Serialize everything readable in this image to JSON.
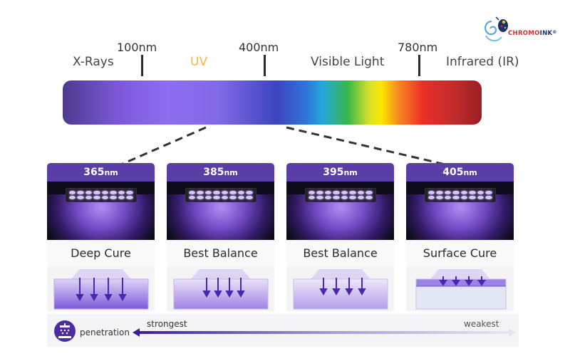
{
  "logo": {
    "text_part1": "CHROMO",
    "text_part2": "INK",
    "tm": "®"
  },
  "spectrum": {
    "wavelengths": [
      "100nm",
      "400nm",
      "780nm"
    ],
    "regions": [
      "X-Rays",
      "UV",
      "Visible Light",
      "Infrared (IR)"
    ]
  },
  "cards": [
    {
      "wavelength": "365",
      "unit": "nm",
      "label": "Deep Cure"
    },
    {
      "wavelength": "385",
      "unit": "nm",
      "label": "Best Balance"
    },
    {
      "wavelength": "395",
      "unit": "nm",
      "label": "Best Balance"
    },
    {
      "wavelength": "405",
      "unit": "nm",
      "label": "Surface Cure"
    }
  ],
  "penetration": {
    "label": "penetration",
    "strongest": "strongest",
    "weakest": "weakest"
  },
  "colors": {
    "accent": "#5a3ea8",
    "uv_label": "#f4b63f",
    "cure_purple": "#6a3fd6"
  }
}
